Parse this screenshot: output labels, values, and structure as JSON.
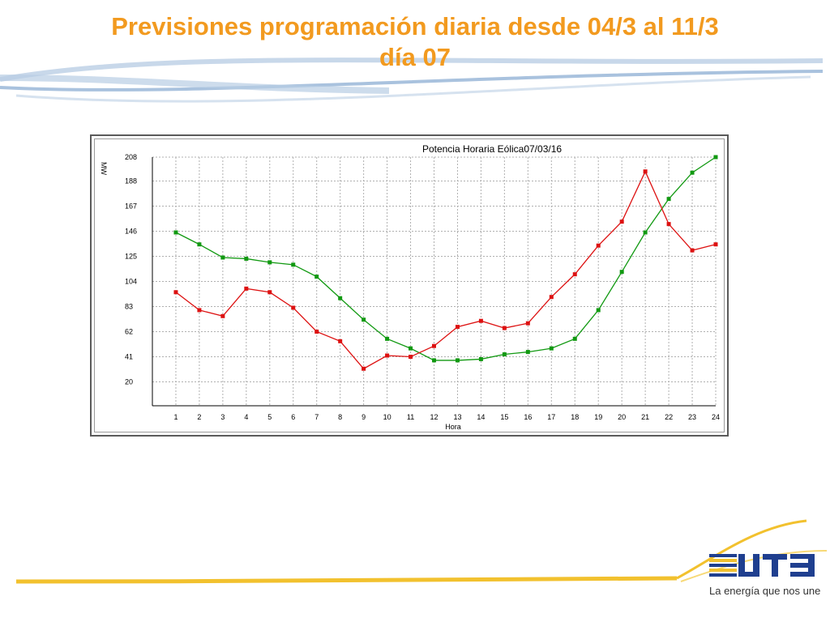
{
  "slide": {
    "title_line1": "Previsiones programación diaria desde 04/3 al 11/3",
    "title_line2": "día 07",
    "title_color": "#f29a1f",
    "footer_color": "#f2c12e",
    "swoosh_color": "#a9c2de"
  },
  "logo": {
    "brand": "UTE",
    "icon": "ute-logo-icon",
    "tagline": "La energía que nos une"
  },
  "chart_data": {
    "type": "line",
    "title": "Potencia Horaria Eólica07/03/16",
    "xlabel": "Hora",
    "ylabel": "MW",
    "x": [
      1,
      2,
      3,
      4,
      5,
      6,
      7,
      8,
      9,
      10,
      11,
      12,
      13,
      14,
      15,
      16,
      17,
      18,
      19,
      20,
      21,
      22,
      23,
      24
    ],
    "xlim": [
      0,
      24
    ],
    "ylim": [
      0,
      208
    ],
    "yticks": [
      20,
      41,
      62,
      83,
      104,
      125,
      146,
      167,
      188,
      208
    ],
    "grid": true,
    "legend": "none",
    "series": [
      {
        "color": "#119911",
        "values": [
          145,
          135,
          124,
          123,
          120,
          118,
          108,
          90,
          72,
          56,
          48,
          38,
          38,
          39,
          43,
          45,
          48,
          56,
          80,
          112,
          145,
          173,
          195,
          208
        ]
      },
      {
        "color": "#dd1111",
        "values": [
          95,
          80,
          75,
          98,
          95,
          82,
          62,
          54,
          31,
          42,
          41,
          50,
          66,
          71,
          65,
          69,
          91,
          110,
          134,
          154,
          196,
          152,
          130,
          135
        ]
      }
    ]
  }
}
